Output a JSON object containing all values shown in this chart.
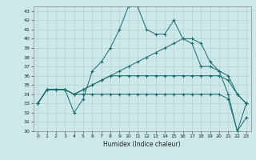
{
  "xlabel": "Humidex (Indice chaleur)",
  "bg_color": "#cce8e8",
  "line_color": "#1a6b6b",
  "grid_color": "#aacccc",
  "ylim": [
    30,
    43.5
  ],
  "xlim": [
    -0.5,
    23.5
  ],
  "yticks": [
    30,
    31,
    32,
    33,
    34,
    35,
    36,
    37,
    38,
    39,
    40,
    41,
    42,
    43
  ],
  "xticks": [
    0,
    1,
    2,
    3,
    4,
    5,
    6,
    7,
    8,
    9,
    10,
    11,
    12,
    13,
    14,
    15,
    16,
    17,
    18,
    19,
    20,
    21,
    22,
    23
  ],
  "line1_x": [
    0,
    1,
    2,
    3,
    4,
    5,
    6,
    7,
    8,
    9,
    10,
    11,
    12,
    13,
    14,
    15,
    16,
    17,
    18,
    19,
    20,
    21,
    22,
    23
  ],
  "line1_y": [
    33.0,
    34.5,
    34.5,
    34.5,
    32.0,
    33.5,
    36.5,
    37.5,
    39.0,
    41.0,
    43.5,
    43.5,
    41.0,
    40.5,
    40.5,
    42.0,
    40.0,
    39.5,
    37.0,
    37.0,
    36.5,
    34.0,
    30.0,
    31.5
  ],
  "line2_x": [
    0,
    1,
    2,
    3,
    4,
    5,
    6,
    7,
    8,
    9,
    10,
    11,
    12,
    13,
    14,
    15,
    16,
    17,
    18,
    19,
    20,
    21,
    22,
    23
  ],
  "line2_y": [
    33.0,
    34.5,
    34.5,
    34.5,
    34.0,
    34.5,
    35.0,
    35.5,
    36.0,
    36.5,
    37.0,
    37.5,
    38.0,
    38.5,
    39.0,
    39.5,
    40.0,
    40.0,
    39.5,
    37.5,
    36.5,
    36.0,
    34.0,
    33.0
  ],
  "line3_x": [
    0,
    1,
    2,
    3,
    4,
    5,
    6,
    7,
    8,
    9,
    10,
    11,
    12,
    13,
    14,
    15,
    16,
    17,
    18,
    19,
    20,
    21,
    22,
    23
  ],
  "line3_y": [
    33.0,
    34.5,
    34.5,
    34.5,
    34.0,
    34.5,
    35.0,
    35.5,
    36.0,
    36.0,
    36.0,
    36.0,
    36.0,
    36.0,
    36.0,
    36.0,
    36.0,
    36.0,
    36.0,
    36.0,
    36.0,
    35.5,
    34.0,
    33.0
  ],
  "line4_x": [
    0,
    1,
    2,
    3,
    4,
    5,
    6,
    7,
    8,
    9,
    10,
    11,
    12,
    13,
    14,
    15,
    16,
    17,
    18,
    19,
    20,
    21,
    22,
    23
  ],
  "line4_y": [
    33.0,
    34.5,
    34.5,
    34.5,
    34.0,
    34.0,
    34.0,
    34.0,
    34.0,
    34.0,
    34.0,
    34.0,
    34.0,
    34.0,
    34.0,
    34.0,
    34.0,
    34.0,
    34.0,
    34.0,
    34.0,
    33.5,
    30.0,
    33.0
  ]
}
